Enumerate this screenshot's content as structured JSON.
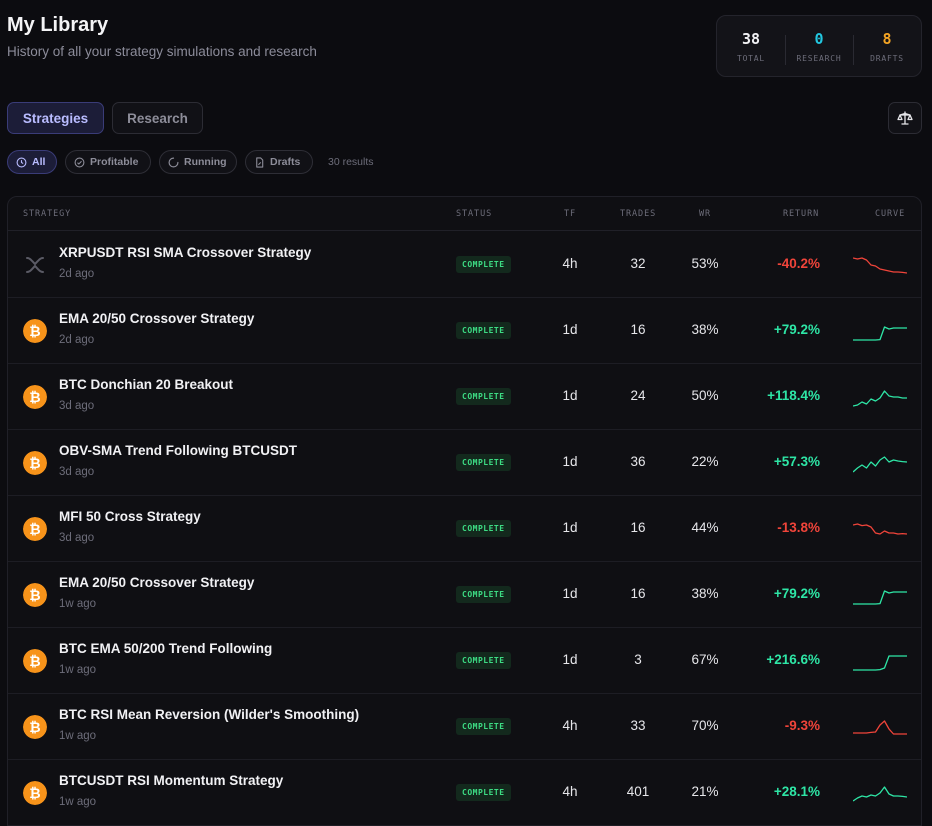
{
  "header": {
    "title": "My Library",
    "subtitle": "History of all your strategy simulations and research"
  },
  "stats": [
    {
      "value": "38",
      "label": "TOTAL",
      "color": "#f1f1f4"
    },
    {
      "value": "0",
      "label": "RESEARCH",
      "color": "#22c7e0"
    },
    {
      "value": "8",
      "label": "DRAFTS",
      "color": "#f5a524"
    }
  ],
  "tabs": {
    "strategies": "Strategies",
    "research": "Research"
  },
  "filters": {
    "all": "All",
    "profitable": "Profitable",
    "running": "Running",
    "drafts": "Drafts"
  },
  "results_count": "30 results",
  "columns": {
    "strategy": "STRATEGY",
    "status": "STATUS",
    "tf": "TF",
    "trades": "TRADES",
    "wr": "WR",
    "return": "RETURN",
    "curve": "CURVE"
  },
  "colors": {
    "positive": "#2ee6a6",
    "negative": "#f0443a",
    "bitcoin": "#f7931a"
  },
  "rows": [
    {
      "name": "XRPUSDT RSI SMA Crossover Strategy",
      "ago": "2d ago",
      "coin": "xrp",
      "status": "COMPLETE",
      "tf": "4h",
      "trades": "32",
      "wr": "53%",
      "return": "-40.2%",
      "positive": false,
      "curve": [
        0.9,
        0.85,
        0.9,
        0.8,
        0.55,
        0.5,
        0.35,
        0.3,
        0.25,
        0.2,
        0.2,
        0.18,
        0.15
      ]
    },
    {
      "name": "EMA 20/50 Crossover Strategy",
      "ago": "2d ago",
      "coin": "btc",
      "status": "COMPLETE",
      "tf": "1d",
      "trades": "16",
      "wr": "38%",
      "return": "+79.2%",
      "positive": true,
      "curve": [
        0.1,
        0.1,
        0.1,
        0.1,
        0.1,
        0.1,
        0.12,
        0.75,
        0.65,
        0.7,
        0.7,
        0.7,
        0.7
      ]
    },
    {
      "name": "BTC Donchian 20 Breakout",
      "ago": "3d ago",
      "coin": "btc",
      "status": "COMPLETE",
      "tf": "1d",
      "trades": "24",
      "wr": "50%",
      "return": "+118.4%",
      "positive": true,
      "curve": [
        0.1,
        0.15,
        0.3,
        0.2,
        0.45,
        0.35,
        0.5,
        0.85,
        0.6,
        0.55,
        0.55,
        0.5,
        0.5
      ]
    },
    {
      "name": "OBV-SMA Trend Following BTCUSDT",
      "ago": "3d ago",
      "coin": "btc",
      "status": "COMPLETE",
      "tf": "1d",
      "trades": "36",
      "wr": "22%",
      "return": "+57.3%",
      "positive": true,
      "curve": [
        0.1,
        0.3,
        0.45,
        0.3,
        0.6,
        0.4,
        0.7,
        0.85,
        0.6,
        0.7,
        0.65,
        0.62,
        0.6
      ]
    },
    {
      "name": "MFI 50 Cross Strategy",
      "ago": "3d ago",
      "coin": "btc",
      "status": "COMPLETE",
      "tf": "1d",
      "trades": "16",
      "wr": "44%",
      "return": "-13.8%",
      "positive": false,
      "curve": [
        0.75,
        0.8,
        0.72,
        0.75,
        0.65,
        0.35,
        0.3,
        0.45,
        0.35,
        0.35,
        0.3,
        0.32,
        0.3
      ]
    },
    {
      "name": "EMA 20/50 Crossover Strategy",
      "ago": "1w ago",
      "coin": "btc",
      "status": "COMPLETE",
      "tf": "1d",
      "trades": "16",
      "wr": "38%",
      "return": "+79.2%",
      "positive": true,
      "curve": [
        0.1,
        0.1,
        0.1,
        0.1,
        0.1,
        0.1,
        0.12,
        0.75,
        0.65,
        0.7,
        0.7,
        0.7,
        0.7
      ]
    },
    {
      "name": "BTC EMA 50/200 Trend Following",
      "ago": "1w ago",
      "coin": "btc",
      "status": "COMPLETE",
      "tf": "1d",
      "trades": "3",
      "wr": "67%",
      "return": "+216.6%",
      "positive": true,
      "curve": [
        0.1,
        0.1,
        0.1,
        0.1,
        0.1,
        0.1,
        0.12,
        0.2,
        0.8,
        0.8,
        0.8,
        0.8,
        0.8
      ]
    },
    {
      "name": "BTC RSI Mean Reversion (Wilder's Smoothing)",
      "ago": "1w ago",
      "coin": "btc",
      "status": "COMPLETE",
      "tf": "4h",
      "trades": "33",
      "wr": "70%",
      "return": "-9.3%",
      "positive": false,
      "curve": [
        0.25,
        0.25,
        0.25,
        0.25,
        0.28,
        0.3,
        0.65,
        0.85,
        0.45,
        0.2,
        0.2,
        0.2,
        0.2
      ]
    },
    {
      "name": "BTCUSDT RSI Momentum Strategy",
      "ago": "1w ago",
      "coin": "btc",
      "status": "COMPLETE",
      "tf": "4h",
      "trades": "401",
      "wr": "21%",
      "return": "+28.1%",
      "positive": true,
      "curve": [
        0.15,
        0.3,
        0.4,
        0.35,
        0.45,
        0.4,
        0.55,
        0.85,
        0.5,
        0.4,
        0.4,
        0.38,
        0.35
      ]
    }
  ]
}
